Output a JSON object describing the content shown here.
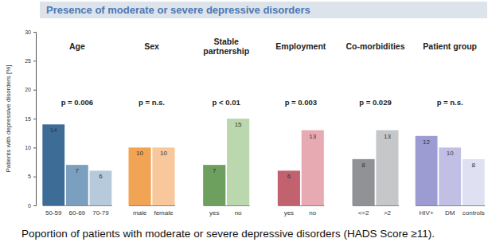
{
  "chart_data": {
    "type": "bar",
    "title": "Presence of moderate or severe depressive disorders",
    "caption": "Poportion of patients with moderate or severe depressive disorders (HADS Score ≥11).",
    "y_label": "Patients with depressive disorders [%]",
    "ylim": [
      0,
      30
    ],
    "yticks": [
      0,
      5,
      10,
      15,
      20,
      25,
      30
    ],
    "grid": false,
    "data_labels": true,
    "groups": [
      {
        "title": "Age",
        "annotation": "p = 0.006",
        "categories": [
          "50-59",
          "60-69",
          "70-79"
        ],
        "values": [
          14,
          7,
          6
        ],
        "colors": [
          "#3d6d96",
          "#7b9fbe",
          "#b6cadb"
        ]
      },
      {
        "title": "Sex",
        "annotation": "p = n.s.",
        "categories": [
          "male",
          "female"
        ],
        "values": [
          10,
          10
        ],
        "colors": [
          "#f2a455",
          "#f8c89c"
        ]
      },
      {
        "title": "Stable partnership",
        "annotation": "p < 0.01",
        "categories": [
          "yes",
          "no"
        ],
        "values": [
          7,
          15
        ],
        "colors": [
          "#6d9f5f",
          "#bad7ae"
        ]
      },
      {
        "title": "Employment",
        "annotation": "p = 0.003",
        "categories": [
          "yes",
          "no"
        ],
        "values": [
          6,
          13
        ],
        "colors": [
          "#c2626f",
          "#e8aab2"
        ]
      },
      {
        "title": "Co-morbidities",
        "annotation": "p = 0.029",
        "categories": [
          "<=2",
          ">2"
        ],
        "values": [
          8,
          13
        ],
        "colors": [
          "#909296",
          "#c6c7c9"
        ]
      },
      {
        "title": "Patient group",
        "annotation": "p = n.s.",
        "categories": [
          "HIV+",
          "DM",
          "controls"
        ],
        "values": [
          12,
          10,
          8
        ],
        "colors": [
          "#9c9bd2",
          "#c1c0e4",
          "#dfe0f1"
        ]
      }
    ]
  }
}
